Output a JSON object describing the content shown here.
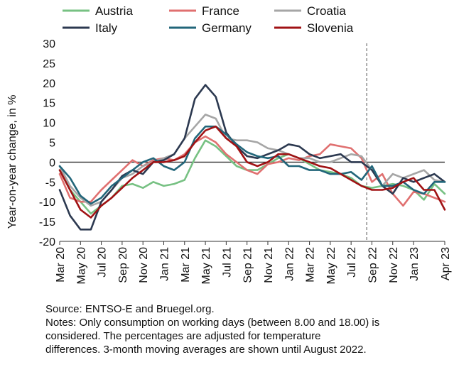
{
  "chart_data": {
    "type": "line",
    "ylabel": "Year-on-year change, in %",
    "xlabel": "",
    "ylim": [
      -20,
      30
    ],
    "yticks": [
      -20,
      -15,
      -10,
      -5,
      0,
      5,
      10,
      15,
      20,
      25,
      30
    ],
    "x": [
      "Mar 20",
      "Apr 20",
      "May 20",
      "Jun 20",
      "Jul 20",
      "Aug 20",
      "Sep 20",
      "Oct 20",
      "Nov 20",
      "Dec 20",
      "Jan 21",
      "Feb 21",
      "Mar 21",
      "Apr 21",
      "May 21",
      "Jun 21",
      "Jul 21",
      "Aug 21",
      "Sep 21",
      "Oct 21",
      "Nov 21",
      "Dec 21",
      "Jan 22",
      "Feb 22",
      "Mar 22",
      "Apr 22",
      "May 22",
      "Jun 22",
      "Jul 22",
      "Aug 22",
      "Sep 22",
      "Oct 22",
      "Nov 22",
      "Dec 22",
      "Jan 23",
      "Feb 23",
      "Mar 23",
      "Apr 23"
    ],
    "tick_labels": [
      "Mar 20",
      "May 20",
      "Jul 20",
      "Sep 20",
      "Nov 20",
      "Jan 21",
      "Mar 21",
      "May 21",
      "Jul 21",
      "Sep 21",
      "Nov 21",
      "Jan 22",
      "Mar 22",
      "May 22",
      "Jul 22",
      "Sep 22",
      "Nov 22",
      "Jan 23",
      "Apr 23"
    ],
    "vline_after": "Aug 22",
    "grid": false,
    "legend_position": "top",
    "series": [
      {
        "name": "Austria",
        "color": "#77c183",
        "values": [
          -2,
          -7,
          -10,
          -13,
          -11,
          -9,
          -6,
          -5.5,
          -6.5,
          -5,
          -6,
          -5.5,
          -4.5,
          1,
          5.5,
          4,
          1.5,
          -1,
          -2,
          -2,
          -0.5,
          1,
          2,
          1,
          -0.5,
          -2,
          -2.5,
          -3,
          -4,
          -6,
          -6.5,
          -6,
          -5.5,
          -6,
          -7,
          -9.5,
          -5.5,
          -8
        ]
      },
      {
        "name": "France",
        "color": "#e07070",
        "values": [
          -3,
          -9,
          -10,
          -10,
          -7,
          -4.5,
          -2,
          0.5,
          -1,
          0.5,
          1,
          0.5,
          2,
          5,
          6.5,
          5,
          2,
          0,
          -2,
          -3,
          -0.5,
          0,
          1,
          0.5,
          1.5,
          2,
          4.5,
          4,
          3.5,
          1,
          -5,
          -3,
          -8,
          -11,
          -7.5,
          -8,
          -9,
          -10
        ]
      },
      {
        "name": "Croatia",
        "color": "#a6a6a6",
        "values": [
          -1,
          -6,
          -9,
          -11,
          -10,
          -7,
          -4,
          -3,
          -1,
          0,
          1,
          2,
          6,
          9,
          12,
          11,
          6,
          5.5,
          5.5,
          5,
          3.5,
          3,
          2,
          1,
          1,
          0,
          0,
          1,
          2,
          1.5,
          -2,
          -6,
          -3,
          -4,
          -3,
          -2,
          -4.5,
          -5
        ]
      },
      {
        "name": "Italy",
        "color": "#2c3950",
        "values": [
          -7,
          -13.5,
          -17,
          -17,
          -10,
          -7,
          -3.5,
          -2,
          -3,
          0,
          0.5,
          2,
          6,
          16,
          19.5,
          16.5,
          7.5,
          4,
          1.5,
          1,
          2,
          3,
          4.5,
          4,
          2,
          1,
          1.5,
          2,
          0,
          0,
          -2,
          -6,
          -8,
          -4,
          -5,
          -4,
          -3,
          -5
        ]
      },
      {
        "name": "Germany",
        "color": "#22667a",
        "values": [
          -1,
          -4,
          -8.5,
          -10.5,
          -9,
          -6,
          -4,
          -2,
          0,
          1,
          -1,
          -2,
          0,
          6,
          9,
          9,
          7,
          4.5,
          2.5,
          1.5,
          1,
          1.5,
          -1,
          -1,
          -2,
          -2,
          -3,
          -3,
          -2.5,
          -4.5,
          -1,
          -6,
          -6,
          -5,
          -7,
          -8,
          -5,
          -5
        ]
      },
      {
        "name": "Slovenia",
        "color": "#a01214",
        "values": [
          -2,
          -7,
          -12,
          -14,
          -11,
          -9,
          -6.5,
          -4,
          -2,
          0,
          0,
          0.5,
          1.5,
          5,
          8,
          9,
          6,
          4,
          0,
          -1,
          0,
          2,
          2,
          1,
          0,
          -1,
          -1.5,
          -3,
          -4.5,
          -6,
          -7,
          -7,
          -6.5,
          -5,
          -4,
          -7,
          -7,
          -12
        ]
      }
    ]
  },
  "notes": {
    "source": "Source: ENTSO-E and Bruegel.org.",
    "line1": "Notes: Only consumption on working days (between 8.00 and 18.00) is",
    "line2": "considered. The percentages are adjusted for temperature",
    "line3": "differences. 3-month moving averages are shown until August 2022."
  }
}
